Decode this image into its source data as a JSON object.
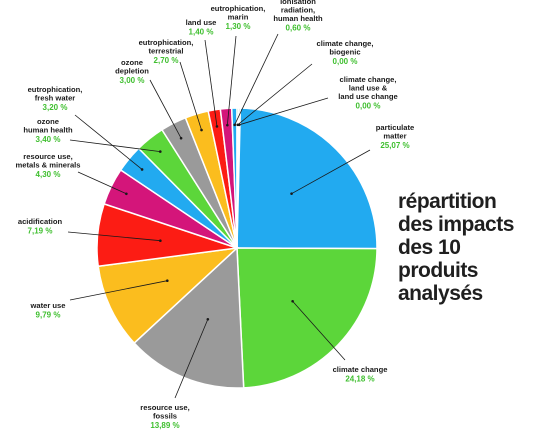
{
  "chart_data": {
    "type": "pie",
    "title_lines": [
      "répartition",
      "des impacts",
      "des 10",
      "produits",
      "analysés"
    ],
    "slices": [
      {
        "label": [
          "particulate",
          "matter"
        ],
        "value_label": "25,07 %",
        "value": 25.07,
        "color": "#22aaf0"
      },
      {
        "label": [
          "climate change"
        ],
        "value_label": "24,18 %",
        "value": 24.18,
        "color": "#5cd63a"
      },
      {
        "label": [
          "resource use,",
          "fossils"
        ],
        "value_label": "13,89 %",
        "value": 13.89,
        "color": "#9a9a9a"
      },
      {
        "label": [
          "water use"
        ],
        "value_label": "9,79 %",
        "value": 9.79,
        "color": "#fbbd1e"
      },
      {
        "label": [
          "acidification"
        ],
        "value_label": "7,19 %",
        "value": 7.19,
        "color": "#fc1c14"
      },
      {
        "label": [
          "resource use,",
          "metals & minerals"
        ],
        "value_label": "4,30 %",
        "value": 4.3,
        "color": "#d4157a"
      },
      {
        "label": [
          "eutrophication,",
          "fresh water"
        ],
        "value_label": "3,20 %",
        "value": 3.2,
        "color": "#22aaf0"
      },
      {
        "label": [
          "ozone",
          "human health"
        ],
        "value_label": "3,40 %",
        "value": 3.4,
        "color": "#5cd63a"
      },
      {
        "label": [
          "ozone",
          "depletion"
        ],
        "value_label": "3,00 %",
        "value": 3.0,
        "color": "#9a9a9a"
      },
      {
        "label": [
          "eutrophication,",
          "terrestrial"
        ],
        "value_label": "2,70 %",
        "value": 2.7,
        "color": "#fbbd1e"
      },
      {
        "label": [
          "land use"
        ],
        "value_label": "1,40 %",
        "value": 1.4,
        "color": "#fc1c14"
      },
      {
        "label": [
          "eutrophication,",
          "marin"
        ],
        "value_label": "1,30 %",
        "value": 1.3,
        "color": "#d4157a"
      },
      {
        "label": [
          "ionisation",
          "radiation,",
          "human health"
        ],
        "value_label": "0,60 %",
        "value": 0.6,
        "color": "#22aaf0"
      },
      {
        "label": [
          "climate change,",
          "biogenic"
        ],
        "value_label": "0,00 %",
        "value": 0.0,
        "color": "#5cd63a"
      },
      {
        "label": [
          "climate change,",
          "land use &",
          "land use change"
        ],
        "value_label": "0,00 %",
        "value": 0.0,
        "color": "#9a9a9a"
      }
    ]
  }
}
